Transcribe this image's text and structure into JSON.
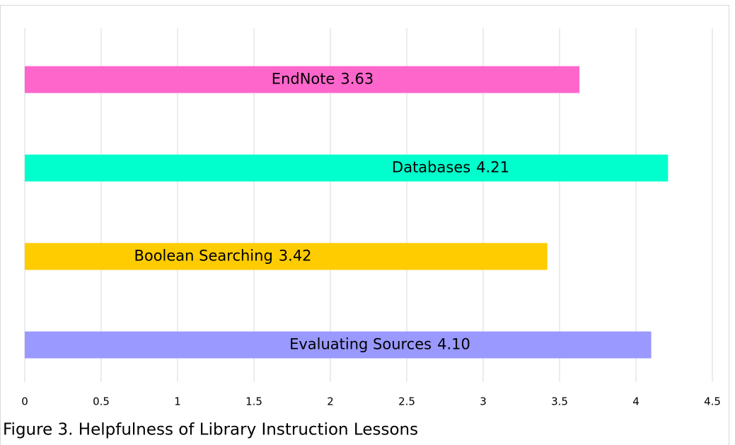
{
  "chart_data": {
    "type": "barh",
    "title": "Figure 3. Helpfulness of Library Instruction Lessons",
    "categories": [
      "EndNote",
      "Databases",
      "Boolean Searching",
      "Evaluating Sources"
    ],
    "values": [
      3.63,
      4.21,
      3.42,
      4.1
    ],
    "value_labels": [
      "3.63",
      "4.21",
      "3.42",
      "4.10"
    ],
    "colors": [
      "#ff66cc",
      "#00ffcc",
      "#ffcc00",
      "#9999ff"
    ],
    "xlim": [
      0,
      4.5
    ],
    "xticks": [
      0,
      0.5,
      1,
      1.5,
      2,
      2.5,
      3,
      3.5,
      4,
      4.5
    ],
    "grid": true
  }
}
